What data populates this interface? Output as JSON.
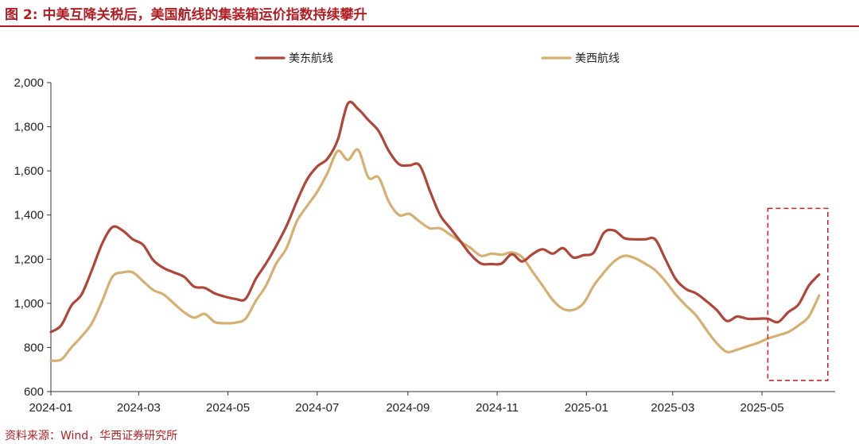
{
  "title": "图 2:  中美互降关税后，美国航线的集装箱运价指数持续攀升",
  "source": "资料来源：Wind，华西证券研究所",
  "colors": {
    "east": "#b0463a",
    "west": "#d4b072",
    "accent": "#b01f24",
    "highlight": "#c8262b"
  },
  "chart_data": {
    "type": "line",
    "title": "",
    "xlabel": "",
    "ylabel": "",
    "ylim": [
      600,
      2000
    ],
    "yticks": [
      600,
      800,
      1000,
      1200,
      1400,
      1600,
      1800,
      2000
    ],
    "ytick_labels": [
      "600",
      "800",
      "1,000",
      "1,200",
      "1,400",
      "1,600",
      "1,800",
      "2,000"
    ],
    "xticks": [
      "2024-01",
      "2024-03",
      "2024-05",
      "2024-07",
      "2024-09",
      "2024-11",
      "2025-01",
      "2025-03",
      "2025-05"
    ],
    "legend_position": "top-center",
    "grid": false,
    "highlight_region": {
      "x_from": "2025-05-05",
      "x_to": "2025-06-15",
      "y_from": 650,
      "y_to": 1430
    },
    "series": [
      {
        "name": "美东航线",
        "points": [
          [
            "2024-01-01",
            870
          ],
          [
            "2024-01-08",
            900
          ],
          [
            "2024-01-15",
            990
          ],
          [
            "2024-01-22",
            1040
          ],
          [
            "2024-01-29",
            1150
          ],
          [
            "2024-02-05",
            1270
          ],
          [
            "2024-02-12",
            1345
          ],
          [
            "2024-02-19",
            1330
          ],
          [
            "2024-02-26",
            1290
          ],
          [
            "2024-03-04",
            1265
          ],
          [
            "2024-03-11",
            1195
          ],
          [
            "2024-03-18",
            1160
          ],
          [
            "2024-03-25",
            1140
          ],
          [
            "2024-04-01",
            1120
          ],
          [
            "2024-04-08",
            1075
          ],
          [
            "2024-04-15",
            1070
          ],
          [
            "2024-04-22",
            1045
          ],
          [
            "2024-04-29",
            1030
          ],
          [
            "2024-05-06",
            1020
          ],
          [
            "2024-05-13",
            1020
          ],
          [
            "2024-05-20",
            1110
          ],
          [
            "2024-05-27",
            1180
          ],
          [
            "2024-06-03",
            1260
          ],
          [
            "2024-06-10",
            1350
          ],
          [
            "2024-06-17",
            1460
          ],
          [
            "2024-06-24",
            1560
          ],
          [
            "2024-07-01",
            1620
          ],
          [
            "2024-07-08",
            1655
          ],
          [
            "2024-07-15",
            1740
          ],
          [
            "2024-07-22",
            1905
          ],
          [
            "2024-07-29",
            1880
          ],
          [
            "2024-08-05",
            1830
          ],
          [
            "2024-08-12",
            1780
          ],
          [
            "2024-08-19",
            1690
          ],
          [
            "2024-08-26",
            1630
          ],
          [
            "2024-09-02",
            1625
          ],
          [
            "2024-09-09",
            1625
          ],
          [
            "2024-09-16",
            1510
          ],
          [
            "2024-09-23",
            1400
          ],
          [
            "2024-09-30",
            1340
          ],
          [
            "2024-10-07",
            1280
          ],
          [
            "2024-10-14",
            1220
          ],
          [
            "2024-10-21",
            1180
          ],
          [
            "2024-10-28",
            1178
          ],
          [
            "2024-11-04",
            1180
          ],
          [
            "2024-11-11",
            1222
          ],
          [
            "2024-11-18",
            1190
          ],
          [
            "2024-11-25",
            1222
          ],
          [
            "2024-12-02",
            1245
          ],
          [
            "2024-12-09",
            1225
          ],
          [
            "2024-12-16",
            1250
          ],
          [
            "2024-12-23",
            1208
          ],
          [
            "2024-12-30",
            1218
          ],
          [
            "2025-01-06",
            1230
          ],
          [
            "2025-01-13",
            1320
          ],
          [
            "2025-01-20",
            1330
          ],
          [
            "2025-01-27",
            1295
          ],
          [
            "2025-02-03",
            1290
          ],
          [
            "2025-02-10",
            1290
          ],
          [
            "2025-02-17",
            1290
          ],
          [
            "2025-02-24",
            1200
          ],
          [
            "2025-03-03",
            1110
          ],
          [
            "2025-03-10",
            1065
          ],
          [
            "2025-03-17",
            1045
          ],
          [
            "2025-03-24",
            1010
          ],
          [
            "2025-03-31",
            970
          ],
          [
            "2025-04-07",
            920
          ],
          [
            "2025-04-14",
            940
          ],
          [
            "2025-04-21",
            930
          ],
          [
            "2025-04-28",
            930
          ],
          [
            "2025-05-05",
            930
          ],
          [
            "2025-05-12",
            915
          ],
          [
            "2025-05-19",
            960
          ],
          [
            "2025-05-26",
            995
          ],
          [
            "2025-06-02",
            1080
          ],
          [
            "2025-06-09",
            1130
          ]
        ]
      },
      {
        "name": "美西航线",
        "points": [
          [
            "2024-01-01",
            740
          ],
          [
            "2024-01-08",
            745
          ],
          [
            "2024-01-15",
            800
          ],
          [
            "2024-01-22",
            850
          ],
          [
            "2024-01-29",
            910
          ],
          [
            "2024-02-05",
            1010
          ],
          [
            "2024-02-12",
            1120
          ],
          [
            "2024-02-19",
            1140
          ],
          [
            "2024-02-26",
            1140
          ],
          [
            "2024-03-04",
            1100
          ],
          [
            "2024-03-11",
            1060
          ],
          [
            "2024-03-18",
            1040
          ],
          [
            "2024-03-25",
            1000
          ],
          [
            "2024-04-01",
            960
          ],
          [
            "2024-04-08",
            935
          ],
          [
            "2024-04-15",
            952
          ],
          [
            "2024-04-22",
            915
          ],
          [
            "2024-04-29",
            910
          ],
          [
            "2024-05-06",
            912
          ],
          [
            "2024-05-13",
            930
          ],
          [
            "2024-05-20",
            1010
          ],
          [
            "2024-05-27",
            1080
          ],
          [
            "2024-06-03",
            1180
          ],
          [
            "2024-06-10",
            1250
          ],
          [
            "2024-06-17",
            1370
          ],
          [
            "2024-06-24",
            1440
          ],
          [
            "2024-07-01",
            1505
          ],
          [
            "2024-07-08",
            1590
          ],
          [
            "2024-07-15",
            1690
          ],
          [
            "2024-07-22",
            1650
          ],
          [
            "2024-07-29",
            1695
          ],
          [
            "2024-08-05",
            1570
          ],
          [
            "2024-08-12",
            1570
          ],
          [
            "2024-08-19",
            1460
          ],
          [
            "2024-08-26",
            1400
          ],
          [
            "2024-09-02",
            1405
          ],
          [
            "2024-09-09",
            1370
          ],
          [
            "2024-09-16",
            1340
          ],
          [
            "2024-09-23",
            1340
          ],
          [
            "2024-09-30",
            1310
          ],
          [
            "2024-10-07",
            1280
          ],
          [
            "2024-10-14",
            1250
          ],
          [
            "2024-10-21",
            1215
          ],
          [
            "2024-10-28",
            1225
          ],
          [
            "2024-11-04",
            1220
          ],
          [
            "2024-11-11",
            1230
          ],
          [
            "2024-11-18",
            1210
          ],
          [
            "2024-11-25",
            1145
          ],
          [
            "2024-12-02",
            1080
          ],
          [
            "2024-12-09",
            1015
          ],
          [
            "2024-12-16",
            975
          ],
          [
            "2024-12-23",
            970
          ],
          [
            "2024-12-30",
            1000
          ],
          [
            "2025-01-06",
            1080
          ],
          [
            "2025-01-13",
            1140
          ],
          [
            "2025-01-20",
            1190
          ],
          [
            "2025-01-27",
            1215
          ],
          [
            "2025-02-03",
            1205
          ],
          [
            "2025-02-10",
            1180
          ],
          [
            "2025-02-17",
            1150
          ],
          [
            "2025-02-24",
            1100
          ],
          [
            "2025-03-03",
            1040
          ],
          [
            "2025-03-10",
            990
          ],
          [
            "2025-03-17",
            945
          ],
          [
            "2025-03-24",
            880
          ],
          [
            "2025-03-31",
            820
          ],
          [
            "2025-04-07",
            780
          ],
          [
            "2025-04-14",
            790
          ],
          [
            "2025-04-21",
            805
          ],
          [
            "2025-04-28",
            820
          ],
          [
            "2025-05-05",
            840
          ],
          [
            "2025-05-12",
            855
          ],
          [
            "2025-05-19",
            870
          ],
          [
            "2025-05-26",
            900
          ],
          [
            "2025-06-02",
            940
          ],
          [
            "2025-06-09",
            1035
          ]
        ]
      }
    ]
  }
}
